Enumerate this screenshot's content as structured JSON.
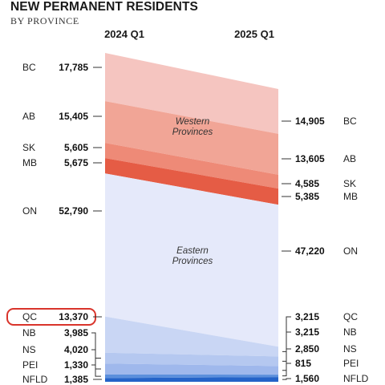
{
  "title": "NEW PERMANENT RESIDENTS",
  "subtitle": "BY PROVINCE",
  "chart_data": {
    "type": "area",
    "x": [
      "2024 Q1",
      "2025 Q1"
    ],
    "series": [
      {
        "name": "BC",
        "values": [
          17785,
          14905
        ],
        "color": "#f5c5c0",
        "left_label": "17,785",
        "right_label": "14,905"
      },
      {
        "name": "AB",
        "values": [
          15405,
          13605
        ],
        "color": "#f1a596",
        "left_label": "15,405",
        "right_label": "13,605"
      },
      {
        "name": "SK",
        "values": [
          5605,
          4585
        ],
        "color": "#ee8a77",
        "left_label": "5,605",
        "right_label": "4,585"
      },
      {
        "name": "MB",
        "values": [
          5675,
          5385
        ],
        "color": "#e55c45",
        "left_label": "5,675",
        "right_label": "5,385"
      },
      {
        "name": "ON",
        "values": [
          52790,
          47220
        ],
        "color": "#e5e9fa",
        "left_label": "52,790",
        "right_label": "47,220"
      },
      {
        "name": "QC",
        "values": [
          13370,
          3215
        ],
        "color": "#c9d6f4",
        "left_label": "13,370",
        "right_label": "3,215"
      },
      {
        "name": "NB",
        "values": [
          3985,
          3215
        ],
        "color": "#b5c8f0",
        "left_label": "3,985",
        "right_label": "3,215"
      },
      {
        "name": "NS",
        "values": [
          4020,
          2850
        ],
        "color": "#9fb8ec",
        "left_label": "4,020",
        "right_label": "2,850"
      },
      {
        "name": "PEI",
        "values": [
          1330,
          815
        ],
        "color": "#5b8fdc",
        "left_label": "1,330",
        "right_label": "815"
      },
      {
        "name": "NFLD",
        "values": [
          1385,
          1560
        ],
        "color": "#2463c8",
        "left_label": "1,385",
        "right_label": "1,560"
      }
    ],
    "group_labels": [
      {
        "lines": [
          "Western",
          "Provinces"
        ]
      },
      {
        "lines": [
          "Eastern",
          "Provinces"
        ]
      }
    ],
    "highlight": "QC",
    "highlight_color": "#d9342b"
  }
}
